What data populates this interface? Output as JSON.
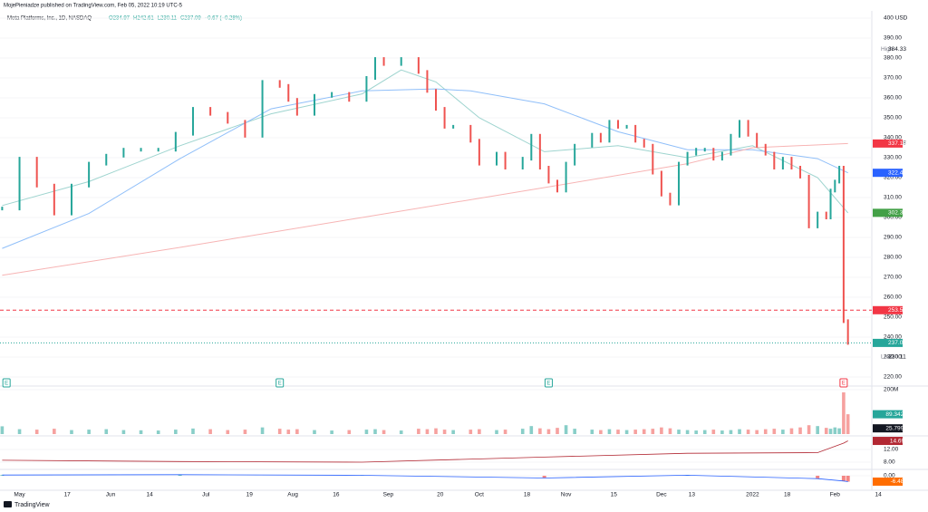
{
  "header": "MojePieniadze published on TradingView.com, Feb 05, 2022 10:19 UTC-5",
  "footer": "TradingView",
  "chart_data": [
    {
      "type": "price",
      "title": "Meta Platforms, Inc., 1D, NASDAQ",
      "quote": [
        "O234.97",
        "H242.61",
        "L230.11",
        "C237.09",
        "−0.67 (−0.28%)"
      ],
      "up_color": "#26a69a",
      "down_color": "#ef5350",
      "x": [
        0,
        4,
        8,
        12,
        16,
        20,
        24,
        28,
        32,
        36,
        40,
        44,
        48,
        52,
        56,
        60,
        64,
        66,
        68,
        72,
        76,
        80,
        84,
        86,
        88,
        92,
        96,
        98,
        100,
        102,
        104,
        108,
        110,
        114,
        116,
        120,
        122,
        124,
        126,
        128,
        130,
        132,
        136,
        138,
        140,
        142,
        144,
        146,
        148,
        150,
        152,
        154,
        156,
        158,
        160,
        162,
        164,
        166,
        168,
        170,
        172,
        174,
        176,
        178,
        180,
        182,
        184,
        186,
        188,
        190,
        191,
        192,
        193,
        194,
        195
      ],
      "values": [
        304.5,
        329.5,
        316,
        302,
        316,
        327,
        331,
        334,
        334,
        334,
        342,
        354.5,
        352,
        348,
        341,
        368,
        366,
        359,
        352,
        361,
        362,
        359,
        370,
        379.5,
        377,
        379.5,
        373,
        363.5,
        354.5,
        345.5,
        345.5,
        338.5,
        327,
        332,
        325,
        329.5,
        341,
        325,
        318,
        313.5,
        327,
        336,
        341.5,
        338.5,
        348,
        345.5,
        345.5,
        338.5,
        336,
        322.5,
        311.5,
        307,
        327,
        332,
        334,
        334,
        329.5,
        332,
        341,
        348,
        341.5,
        336,
        332,
        325,
        329.5,
        325,
        320.5,
        295.5,
        302,
        300,
        313.5,
        318,
        325,
        248,
        237.09
      ],
      "xlim": [
        -0.5,
        200.5
      ],
      "xticks": [
        {
          "value": 4,
          "label": "May"
        },
        {
          "value": 15,
          "label": "17"
        },
        {
          "value": 25,
          "label": "Jun"
        },
        {
          "value": 34,
          "label": "14"
        },
        {
          "value": 47,
          "label": "Jul"
        },
        {
          "value": 57,
          "label": "19"
        },
        {
          "value": 67,
          "label": "Aug"
        },
        {
          "value": 77,
          "label": "16"
        },
        {
          "value": 89,
          "label": "Sep"
        },
        {
          "value": 101,
          "label": "20"
        },
        {
          "value": 110,
          "label": "Oct"
        },
        {
          "value": 121,
          "label": "18"
        },
        {
          "value": 130,
          "label": "Nov"
        },
        {
          "value": 141,
          "label": "15"
        },
        {
          "value": 152,
          "label": "Dec"
        },
        {
          "value": 159,
          "label": "13"
        },
        {
          "value": 173,
          "label": "2022"
        },
        {
          "value": 181,
          "label": "18"
        },
        {
          "value": 192,
          "label": "Feb"
        },
        {
          "value": 202,
          "label": "14"
        }
      ],
      "ylim": [
        220,
        400
      ],
      "yticks": [
        {
          "value": 220,
          "label": "220.00"
        },
        {
          "value": 230,
          "label": "230.00"
        },
        {
          "value": 240,
          "label": "240.00"
        },
        {
          "value": 250,
          "label": "250.00"
        },
        {
          "value": 260,
          "label": "260.00"
        },
        {
          "value": 270,
          "label": "270.00"
        },
        {
          "value": 280,
          "label": "280.00"
        },
        {
          "value": 290,
          "label": "290.00"
        },
        {
          "value": 300,
          "label": "300.00"
        },
        {
          "value": 310,
          "label": "310.00"
        },
        {
          "value": 320,
          "label": "320.00"
        },
        {
          "value": 330,
          "label": "330.00"
        },
        {
          "value": 340,
          "label": "340.00"
        },
        {
          "value": 350,
          "label": "350.00"
        },
        {
          "value": 360,
          "label": "360.00"
        },
        {
          "value": 370,
          "label": "370.00"
        },
        {
          "value": 380,
          "label": "380.00"
        },
        {
          "value": 390,
          "label": "390.00"
        },
        {
          "value": 400,
          "label": "400 USD"
        }
      ],
      "averages": [
        {
          "color": "#9ed4cf",
          "x": [
            0,
            20,
            41,
            62,
            83,
            92,
            100,
            110,
            125,
            142,
            158,
            173,
            188,
            195
          ],
          "values": [
            306,
            318,
            336,
            352,
            362,
            374,
            368,
            350,
            333,
            336,
            330,
            336,
            320,
            302.33
          ]
        },
        {
          "color": "#90bff9",
          "x": [
            0,
            20,
            41,
            62,
            83,
            100,
            108,
            125,
            142,
            158,
            173,
            188,
            195
          ],
          "values": [
            284.5,
            302,
            329.5,
            354.5,
            363.5,
            364.5,
            363.5,
            357,
            343,
            334,
            334,
            329.5,
            322.41
          ]
        },
        {
          "color": "#f7b4b4",
          "x": [
            0,
            41,
            83,
            125,
            158,
            173,
            195
          ],
          "values": [
            271,
            285,
            300,
            315,
            327,
            335,
            337.1
          ]
        }
      ],
      "price_labels": [
        {
          "tag": "High",
          "value": 384.33,
          "label": "384.33"
        },
        {
          "tag": "Avg",
          "value": 337.28,
          "label": "337.28"
        },
        {
          "value": 337.1,
          "label": "337.10",
          "color": "#f23645"
        },
        {
          "value": 322.41,
          "label": "322.41",
          "color": "#2962ff"
        },
        {
          "value": 302.33,
          "label": "302.33",
          "color": "#43a047"
        },
        {
          "value": 253.5,
          "label": "253.50",
          "color": "#f23645",
          "line": "dashed"
        },
        {
          "value": 237.09,
          "label": "237.09",
          "color": "#26a69a",
          "line": "dotted"
        },
        {
          "tag": "Low",
          "value": 230.11,
          "label": "230.11"
        }
      ],
      "earnings": {
        "label": "E",
        "x": [
          1,
          64,
          126,
          194
        ]
      }
    },
    {
      "type": "bar",
      "values": [
        35,
        22,
        20,
        24,
        18,
        20,
        22,
        18,
        17,
        16,
        20,
        25,
        22,
        18,
        20,
        30,
        24,
        20,
        22,
        18,
        16,
        18,
        20,
        22,
        18,
        16,
        24,
        22,
        26,
        20,
        18,
        20,
        22,
        18,
        20,
        24,
        36,
        26,
        22,
        28,
        40,
        24,
        20,
        18,
        22,
        20,
        18,
        20,
        22,
        24,
        30,
        26,
        20,
        18,
        16,
        18,
        20,
        16,
        18,
        22,
        20,
        18,
        22,
        24,
        20,
        26,
        30,
        40,
        36,
        28,
        24,
        30,
        26,
        188,
        89.342
      ],
      "ylim": [
        0,
        200
      ],
      "yticks": [
        {
          "value": 200,
          "label": "200M"
        }
      ],
      "last_labels": [
        {
          "value": 89.342,
          "label": "89.342M",
          "color": "#26a69a"
        },
        {
          "value": 25.799,
          "label": "25.799M",
          "color": "#131722"
        }
      ]
    },
    {
      "type": "line",
      "color": "#b22833",
      "x": [
        0,
        41,
        83,
        125,
        158,
        188,
        194,
        195
      ],
      "values": [
        8.6,
        8.2,
        8,
        9.6,
        10.8,
        11,
        14,
        14.69
      ],
      "ylim": [
        6,
        15.7
      ],
      "yticks": [
        {
          "value": 8,
          "label": "8.00"
        },
        {
          "value": 12,
          "label": "12.00"
        }
      ],
      "last_labels": [
        {
          "value": 14.69,
          "label": "14.69",
          "color": "#b22833"
        }
      ]
    },
    {
      "type": "macd",
      "color": "#2962ff",
      "up_color": "#26a69a",
      "down_color": "#ef5350",
      "x": [
        0,
        41,
        83,
        125,
        158,
        188,
        194,
        195
      ],
      "values": [
        0.8,
        1.2,
        0.5,
        -2.5,
        0.6,
        -3.2,
        -5.8,
        -6.48
      ],
      "ylim": [
        -15,
        6
      ],
      "yticks": [
        {
          "value": 0,
          "label": "0.00"
        }
      ],
      "last_labels": [
        {
          "value": -6.48,
          "label": "-6.48",
          "color": "#ff6d00"
        }
      ]
    }
  ]
}
